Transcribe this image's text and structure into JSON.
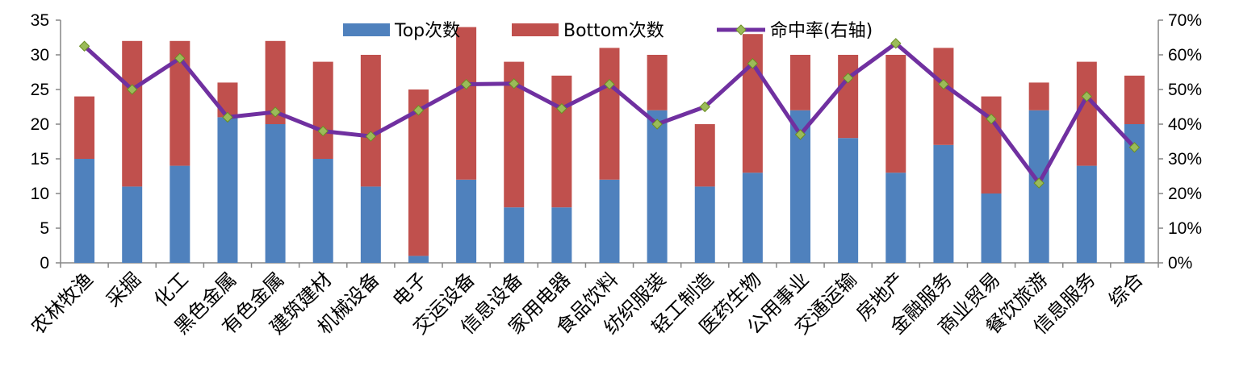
{
  "chart_data": {
    "type": "bar",
    "stacked": true,
    "categories": [
      "农林牧渔",
      "采掘",
      "化工",
      "黑色金属",
      "有色金属",
      "建筑建材",
      "机械设备",
      "电子",
      "交运设备",
      "信息设备",
      "家用电器",
      "食品饮料",
      "纺织服装",
      "轻工制造",
      "医药生物",
      "公用事业",
      "交通运输",
      "房地产",
      "金融服务",
      "商业贸易",
      "餐饮旅游",
      "信息服务",
      "综合"
    ],
    "series": [
      {
        "name": "Top次数",
        "type": "bar",
        "axis": "left",
        "color": "#4F81BD",
        "values": [
          15,
          11,
          14,
          21,
          20,
          15,
          11,
          1,
          12,
          8,
          8,
          12,
          22,
          11,
          13,
          22,
          18,
          13,
          17,
          10,
          22,
          14,
          20
        ]
      },
      {
        "name": "Bottom次数",
        "type": "bar",
        "axis": "left",
        "color": "#C0504D",
        "values": [
          9,
          21,
          18,
          5,
          12,
          14,
          19,
          24,
          22,
          21,
          19,
          19,
          8,
          9,
          20,
          8,
          12,
          17,
          14,
          14,
          4,
          15,
          7
        ]
      },
      {
        "name": "命中率(右轴)",
        "type": "line",
        "axis": "right",
        "color": "#7030A0",
        "marker_color": "#9BBB59",
        "values": [
          0.625,
          0.5,
          0.59,
          0.42,
          0.435,
          0.38,
          0.365,
          0.44,
          0.515,
          0.517,
          0.445,
          0.515,
          0.4,
          0.45,
          0.575,
          0.37,
          0.533,
          0.633,
          0.515,
          0.415,
          0.23,
          0.48,
          0.333
        ]
      }
    ],
    "y_left": {
      "min": 0,
      "max": 35,
      "ticks": [
        "0",
        "5",
        "10",
        "15",
        "20",
        "25",
        "30",
        "35"
      ]
    },
    "y_right": {
      "min": 0,
      "max": 0.7,
      "ticks": [
        "0%",
        "10%",
        "20%",
        "30%",
        "40%",
        "50%",
        "60%",
        "70%"
      ]
    },
    "legend": {
      "placement": "top-center",
      "entries": [
        "Top次数",
        "Bottom次数",
        "命中率(右轴)"
      ]
    },
    "grid": false
  }
}
